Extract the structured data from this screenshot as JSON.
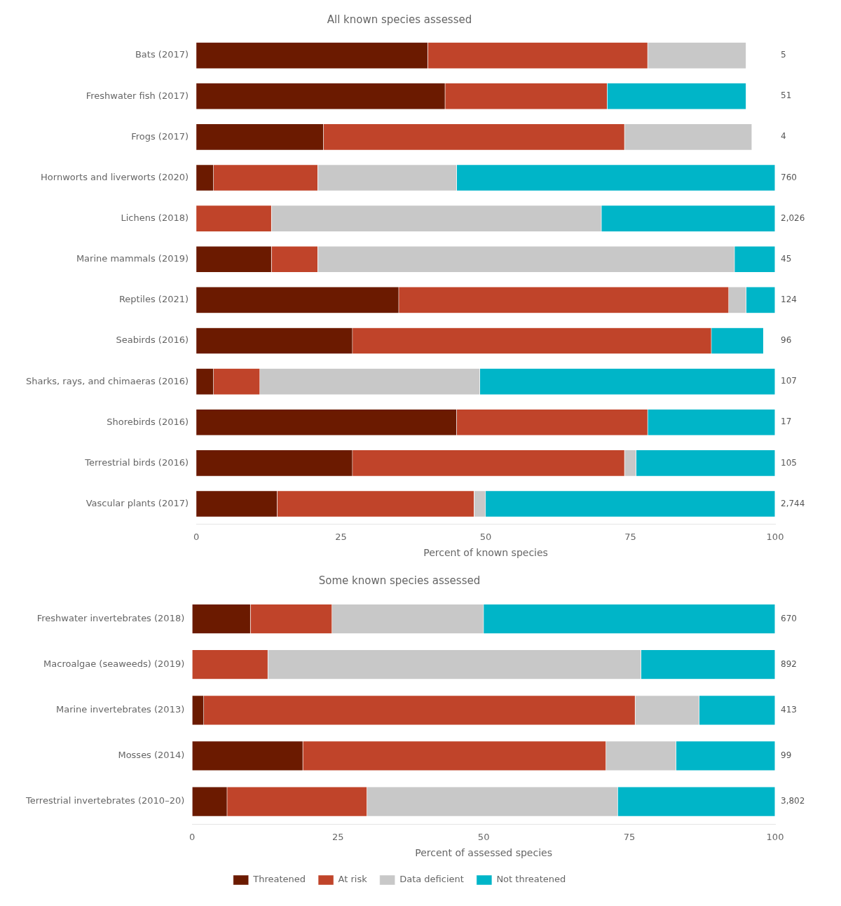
{
  "chart_data": [
    {
      "type": "bar",
      "orientation": "horizontal",
      "stacked": true,
      "grid": false,
      "title": "All known species assessed",
      "xlabel": "Percent of known species",
      "xlim": [
        0,
        100
      ],
      "xticks": [
        0,
        25,
        50,
        75,
        100
      ],
      "categories": [
        "Bats (2017)",
        "Freshwater fish (2017)",
        "Frogs (2017)",
        "Hornworts and liverworts (2020)",
        "Lichens (2018)",
        "Marine mammals (2019)",
        "Reptiles (2021)",
        "Seabirds (2016)",
        "Sharks, rays, and chimaeras (2016)",
        "Shorebirds (2016)",
        "Terrestrial birds (2016)",
        "Vascular plants (2017)"
      ],
      "series": [
        {
          "name": "Threatened",
          "color": "#6B1A00",
          "values": [
            40,
            43,
            22,
            3,
            0,
            13,
            35,
            27,
            3,
            45,
            27,
            14
          ]
        },
        {
          "name": "At risk",
          "color": "#C0442A",
          "values": [
            38,
            28,
            52,
            18,
            13,
            8,
            57,
            62,
            8,
            33,
            47,
            34
          ]
        },
        {
          "name": "Data deficient",
          "color": "#C8C8C8",
          "values": [
            17,
            0,
            22,
            24,
            57,
            72,
            3,
            0,
            38,
            0,
            2,
            2
          ]
        },
        {
          "name": "Not threatened",
          "color": "#00B5C8",
          "values": [
            0,
            24,
            0,
            55,
            30,
            7,
            5,
            9,
            51,
            22,
            24,
            50
          ]
        }
      ],
      "annotations": [
        "5",
        "51",
        "4",
        "760",
        "2,026",
        "45",
        "124",
        "96",
        "107",
        "17",
        "105",
        "2,744"
      ]
    },
    {
      "type": "bar",
      "orientation": "horizontal",
      "stacked": true,
      "grid": false,
      "legend": "bottom",
      "title": "Some known species assessed",
      "xlabel": "Percent of assessed species",
      "xlim": [
        0,
        100
      ],
      "xticks": [
        0,
        25,
        50,
        75,
        100
      ],
      "categories": [
        "Freshwater invertebrates (2018)",
        "Macroalgae (seaweeds) (2019)",
        "Marine invertebrates (2013)",
        "Mosses (2014)",
        "Terrestrial invertebrates (2010–20)"
      ],
      "series": [
        {
          "name": "Threatened",
          "color": "#6B1A00",
          "values": [
            10,
            0,
            2,
            19,
            6
          ]
        },
        {
          "name": "At risk",
          "color": "#C0442A",
          "values": [
            14,
            13,
            74,
            52,
            24
          ]
        },
        {
          "name": "Data deficient",
          "color": "#C8C8C8",
          "values": [
            26,
            64,
            11,
            12,
            43
          ]
        },
        {
          "name": "Not threatened",
          "color": "#00B5C8",
          "values": [
            50,
            23,
            13,
            17,
            27
          ]
        }
      ],
      "annotations": [
        "670",
        "892",
        "413",
        "99",
        "3,802"
      ]
    }
  ]
}
